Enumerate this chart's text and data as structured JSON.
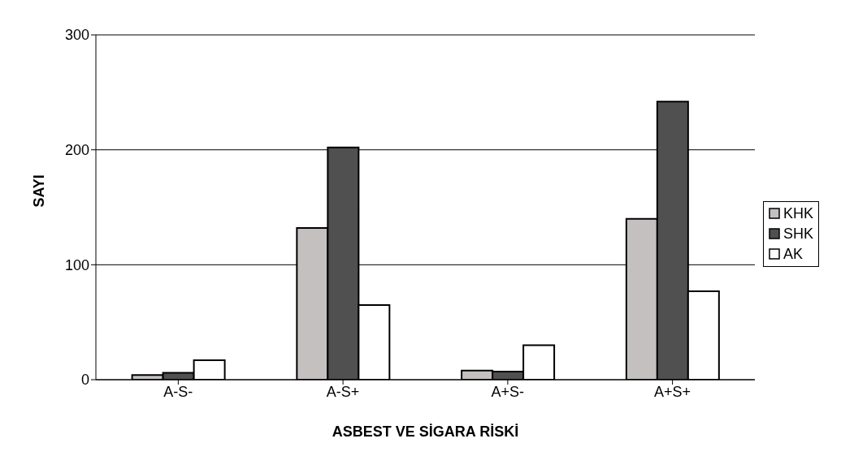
{
  "chart_data": {
    "type": "bar",
    "xlabel": "ASBEST VE SİGARA RİSKİ",
    "ylabel": "SAYI",
    "categories": [
      "A-S-",
      "A-S+",
      "A+S-",
      "A+S+"
    ],
    "series": [
      {
        "name": "KHK",
        "color": "#c4c0c0",
        "values": [
          4,
          132,
          8,
          140
        ]
      },
      {
        "name": "SHK",
        "color": "#505050",
        "values": [
          6,
          202,
          7,
          242
        ]
      },
      {
        "name": "AK",
        "color": "#ffffff",
        "values": [
          17,
          65,
          30,
          77
        ]
      }
    ],
    "ylim": [
      0,
      300
    ],
    "yticks": [
      0,
      100,
      200,
      300
    ],
    "grid": "y",
    "legend": "right"
  }
}
